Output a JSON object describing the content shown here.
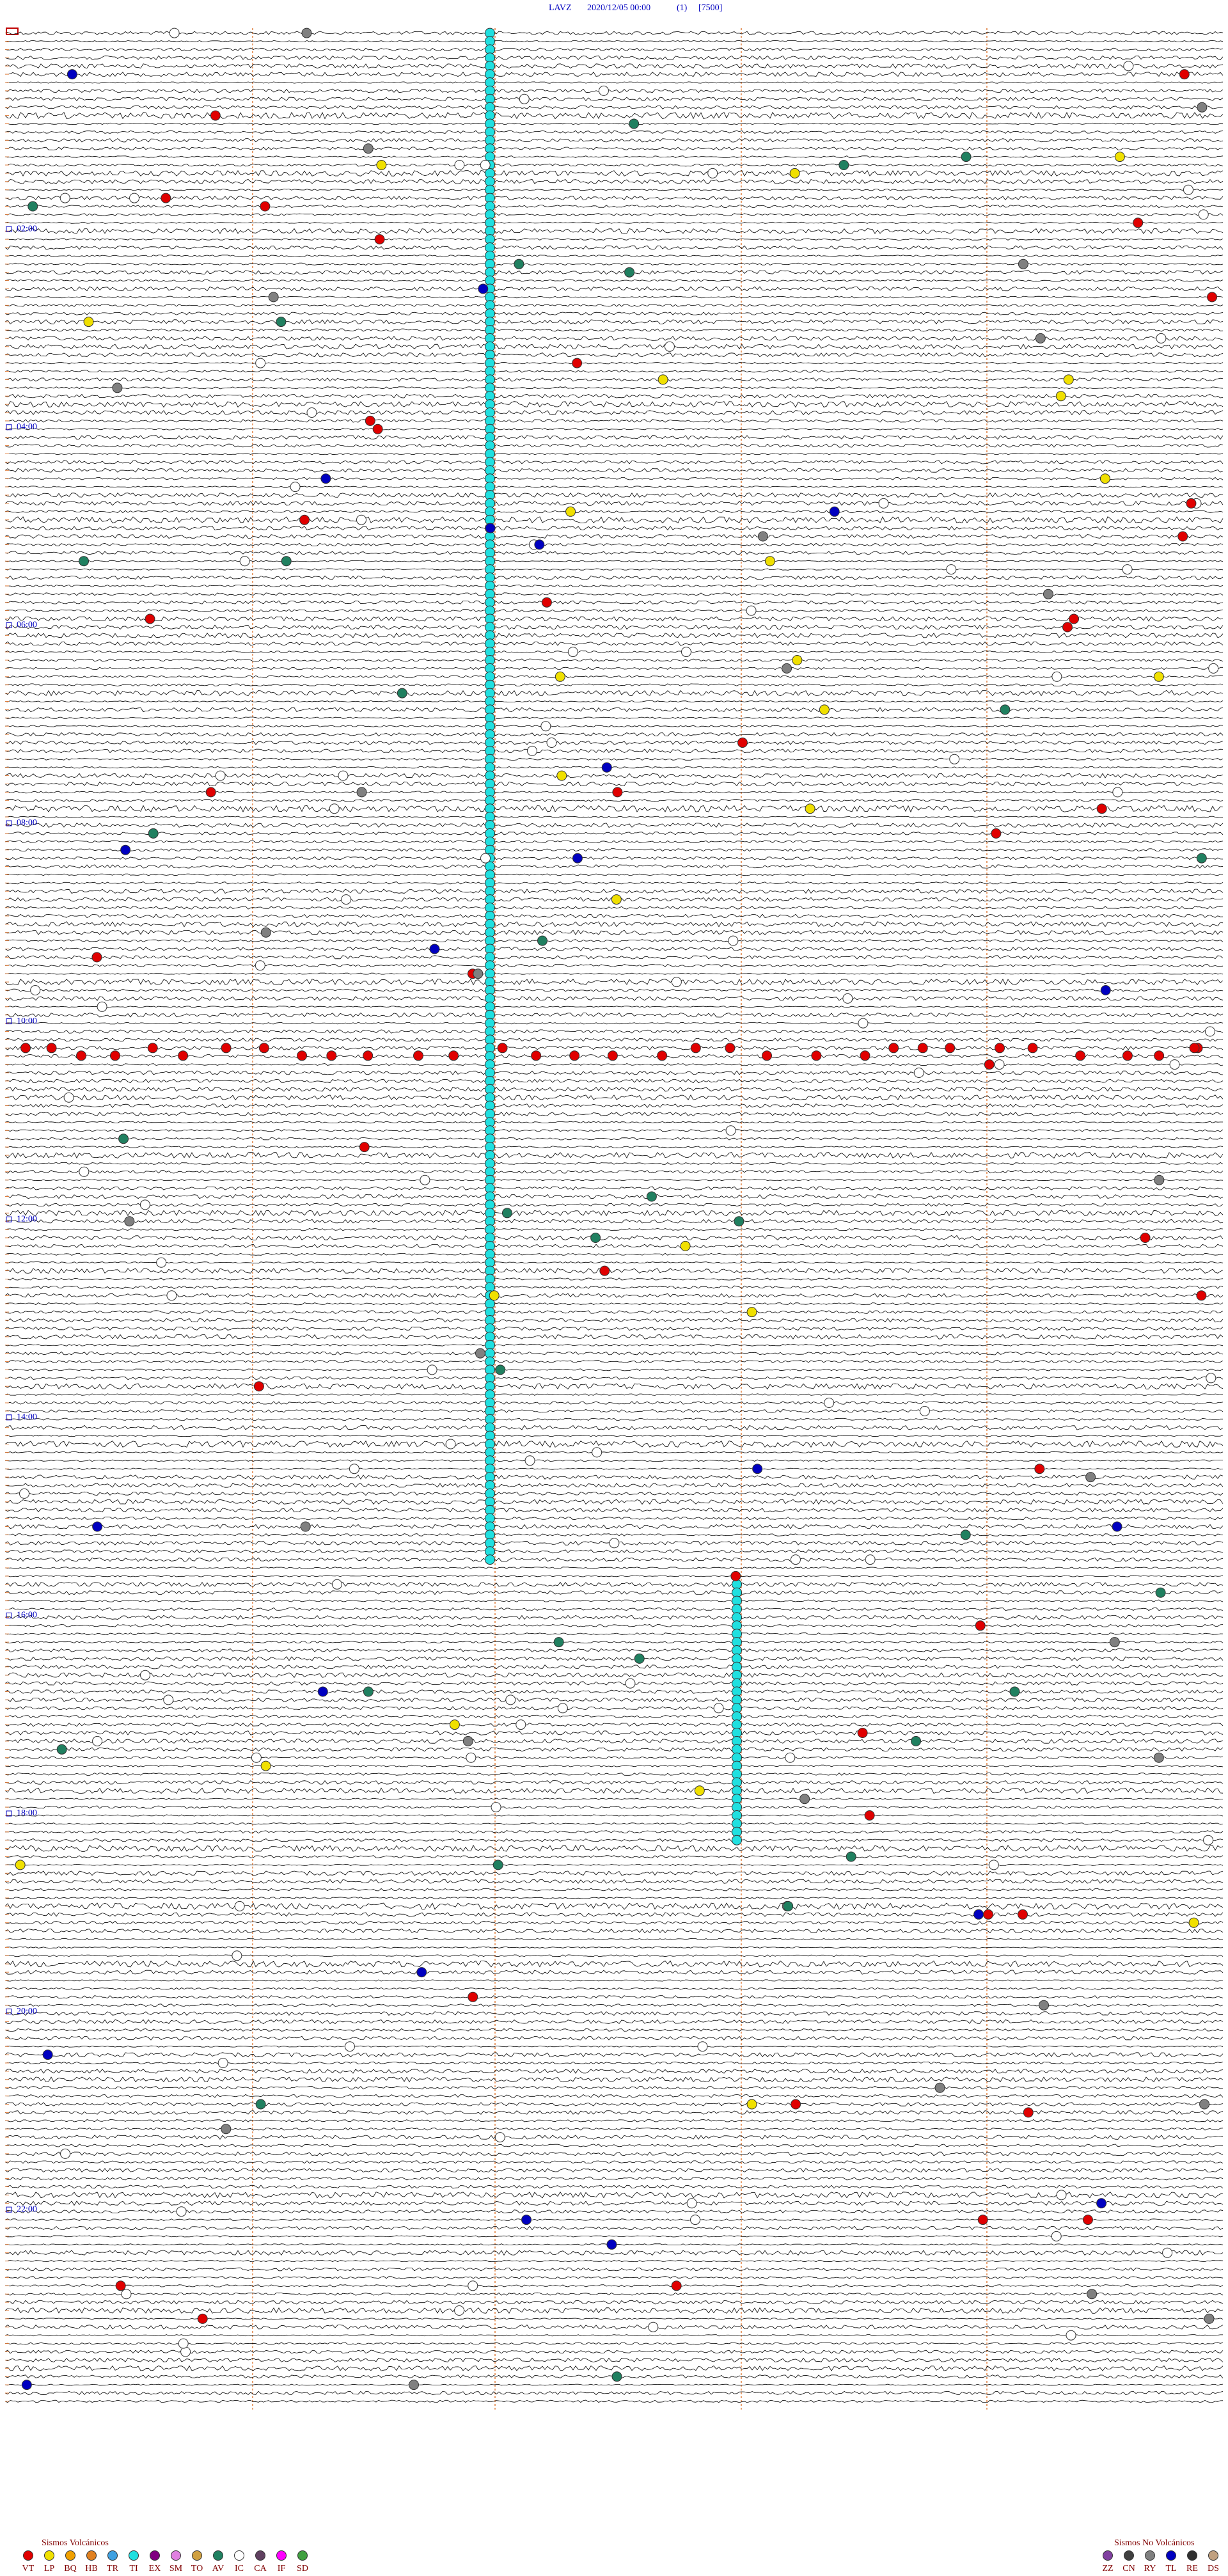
{
  "header": {
    "station": "LAVZ",
    "datetime": "2020/12/05 00:00",
    "channel": "(1)",
    "scale": "[7500]"
  },
  "time_labels": [
    "02:00",
    "04:00",
    "06:00",
    "08:00",
    "10:00",
    "12:00",
    "14:00",
    "16:00",
    "18:00",
    "20:00",
    "22:00"
  ],
  "legend_volcanic": {
    "title": "Sismos Volcánicos",
    "items": [
      {
        "label": "VT",
        "color": "#e00000"
      },
      {
        "label": "LP",
        "color": "#f0e000"
      },
      {
        "label": "BQ",
        "color": "#f0a000"
      },
      {
        "label": "HB",
        "color": "#e08020"
      },
      {
        "label": "TR",
        "color": "#40a0e0"
      },
      {
        "label": "TI",
        "color": "#20e0e0"
      },
      {
        "label": "EX",
        "color": "#800080"
      },
      {
        "label": "SM",
        "color": "#e080e0"
      },
      {
        "label": "TO",
        "color": "#d0a040"
      },
      {
        "label": "AV",
        "color": "#208060"
      },
      {
        "label": "IC",
        "color": "#ffffff"
      },
      {
        "label": "CA",
        "color": "#604060"
      },
      {
        "label": "IF",
        "color": "#ff00ff"
      },
      {
        "label": "SD",
        "color": "#40a040"
      }
    ]
  },
  "legend_nonvolcanic": {
    "title": "Sismos No Volcánicos",
    "items": [
      {
        "label": "ZZ",
        "color": "#8040a0"
      },
      {
        "label": "CN",
        "color": "#404040"
      },
      {
        "label": "RY",
        "color": "#808080"
      },
      {
        "label": "TL",
        "color": "#0000c0"
      },
      {
        "label": "RE",
        "color": "#303030"
      },
      {
        "label": "DS",
        "color": "#c0a080"
      }
    ]
  }
}
